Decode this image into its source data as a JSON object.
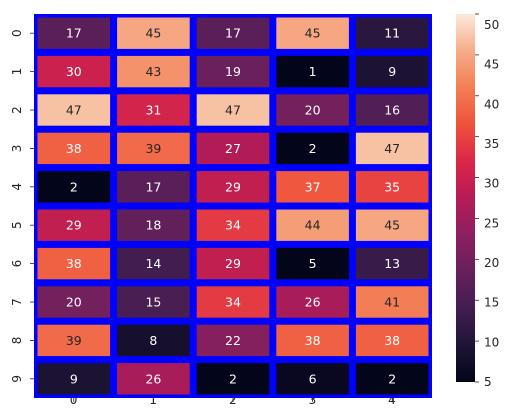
{
  "chart_data": {
    "type": "heatmap",
    "title": "",
    "xlabel": "",
    "ylabel": "",
    "x_ticks": [
      "0",
      "1",
      "2",
      "3",
      "4"
    ],
    "y_ticks": [
      "0",
      "1",
      "2",
      "3",
      "4",
      "5",
      "6",
      "7",
      "8",
      "9"
    ],
    "values": [
      [
        17,
        45,
        17,
        45,
        11
      ],
      [
        30,
        43,
        19,
        1,
        9
      ],
      [
        47,
        31,
        47,
        20,
        16
      ],
      [
        38,
        39,
        27,
        2,
        47
      ],
      [
        2,
        17,
        29,
        37,
        35
      ],
      [
        29,
        18,
        34,
        44,
        45
      ],
      [
        38,
        14,
        29,
        5,
        13
      ],
      [
        20,
        15,
        34,
        26,
        41
      ],
      [
        39,
        8,
        22,
        38,
        38
      ],
      [
        9,
        26,
        2,
        6,
        2
      ]
    ],
    "color_range": [
      5,
      50
    ],
    "colormap": "rocket",
    "colorbar_ticks": [
      "5",
      "10",
      "15",
      "20",
      "25",
      "30",
      "35",
      "40",
      "45",
      "50"
    ],
    "cell_border_color": "#0000ff",
    "annotated": true
  }
}
